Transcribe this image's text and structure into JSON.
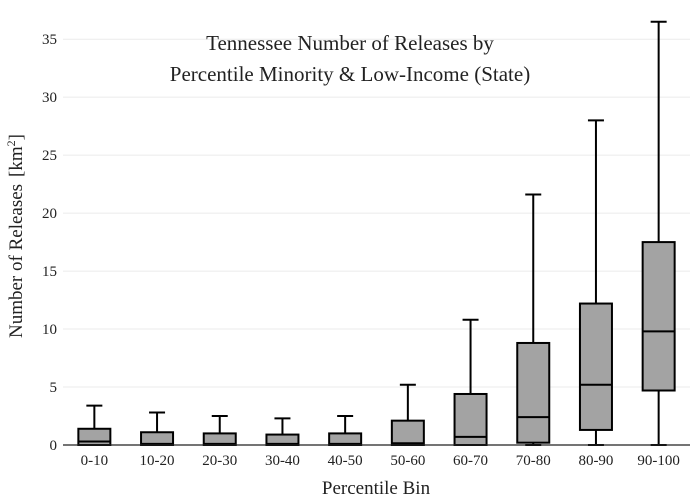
{
  "chart_data": {
    "type": "box",
    "title_lines": [
      "Tennessee Number of Releases by",
      "Percentile Minority & Low-Income (State)"
    ],
    "xlabel": "Percentile Bin",
    "ylabel": "Number of Releases",
    "ylabel_unit_base": "[km",
    "ylabel_unit_sup": "2",
    "ylabel_unit_close": "]",
    "ylim": [
      0,
      37
    ],
    "yticks": [
      0,
      5,
      10,
      15,
      20,
      25,
      30,
      35
    ],
    "grid": true,
    "colors": {
      "box_fill": "#a3a3a3",
      "stroke": "#000000",
      "grid": "#ebebeb"
    },
    "categories": [
      "0-10",
      "10-20",
      "20-30",
      "30-40",
      "40-50",
      "50-60",
      "60-70",
      "70-80",
      "80-90",
      "90-100"
    ],
    "boxes": [
      {
        "min": 0,
        "q1": 0,
        "median": 0.3,
        "q3": 1.4,
        "max": 3.4
      },
      {
        "min": 0,
        "q1": 0,
        "median": 0.1,
        "q3": 1.1,
        "max": 2.8
      },
      {
        "min": 0,
        "q1": 0,
        "median": 0.1,
        "q3": 1.0,
        "max": 2.5
      },
      {
        "min": 0,
        "q1": 0,
        "median": 0.1,
        "q3": 0.9,
        "max": 2.3
      },
      {
        "min": 0,
        "q1": 0,
        "median": 0.1,
        "q3": 1.0,
        "max": 2.5
      },
      {
        "min": 0,
        "q1": 0,
        "median": 0.15,
        "q3": 2.1,
        "max": 5.2
      },
      {
        "min": 0,
        "q1": 0,
        "median": 0.7,
        "q3": 4.4,
        "max": 10.8
      },
      {
        "min": 0,
        "q1": 0.2,
        "median": 2.4,
        "q3": 8.8,
        "max": 21.6
      },
      {
        "min": 0,
        "q1": 1.3,
        "median": 5.2,
        "q3": 12.2,
        "max": 28.0
      },
      {
        "min": 0,
        "q1": 4.7,
        "median": 9.8,
        "q3": 17.5,
        "max": 36.5
      }
    ]
  }
}
